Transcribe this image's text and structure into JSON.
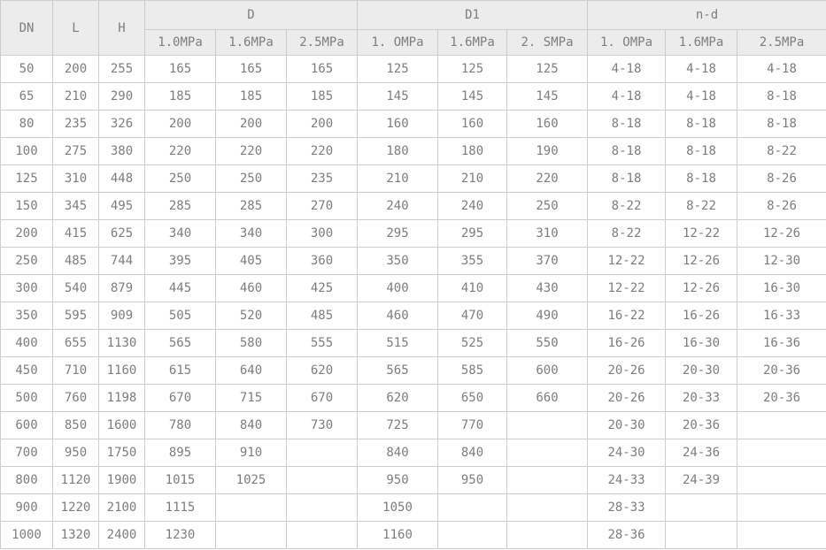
{
  "table": {
    "header": {
      "dn": "DN",
      "l": "L",
      "h": "H",
      "groups": [
        {
          "label": "D",
          "subs": [
            "1.0MPa",
            "1.6MPa",
            "2.5MPa"
          ]
        },
        {
          "label": "D1",
          "subs": [
            "1. OMPa",
            "1.6MPa",
            "2. SMPa"
          ]
        },
        {
          "label": "n-d",
          "subs": [
            "1. OMPa",
            "1.6MPa",
            "2.5MPa"
          ]
        }
      ]
    },
    "rows": [
      [
        "50",
        "200",
        "255",
        "165",
        "165",
        "165",
        "125",
        "125",
        "125",
        "4-18",
        "4-18",
        "4-18"
      ],
      [
        "65",
        "210",
        "290",
        "185",
        "185",
        "185",
        "145",
        "145",
        "145",
        "4-18",
        "4-18",
        "8-18"
      ],
      [
        "80",
        "235",
        "326",
        "200",
        "200",
        "200",
        "160",
        "160",
        "160",
        "8-18",
        "8-18",
        "8-18"
      ],
      [
        "100",
        "275",
        "380",
        "220",
        "220",
        "220",
        "180",
        "180",
        "190",
        "8-18",
        "8-18",
        "8-22"
      ],
      [
        "125",
        "310",
        "448",
        "250",
        "250",
        "235",
        "210",
        "210",
        "220",
        "8-18",
        "8-18",
        "8-26"
      ],
      [
        "150",
        "345",
        "495",
        "285",
        "285",
        "270",
        "240",
        "240",
        "250",
        "8-22",
        "8-22",
        "8-26"
      ],
      [
        "200",
        "415",
        "625",
        "340",
        "340",
        "300",
        "295",
        "295",
        "310",
        "8-22",
        "12-22",
        "12-26"
      ],
      [
        "250",
        "485",
        "744",
        "395",
        "405",
        "360",
        "350",
        "355",
        "370",
        "12-22",
        "12-26",
        "12-30"
      ],
      [
        "300",
        "540",
        "879",
        "445",
        "460",
        "425",
        "400",
        "410",
        "430",
        "12-22",
        "12-26",
        "16-30"
      ],
      [
        "350",
        "595",
        "909",
        "505",
        "520",
        "485",
        "460",
        "470",
        "490",
        "16-22",
        "16-26",
        "16-33"
      ],
      [
        "400",
        "655",
        "1130",
        "565",
        "580",
        "555",
        "515",
        "525",
        "550",
        "16-26",
        "16-30",
        "16-36"
      ],
      [
        "450",
        "710",
        "1160",
        "615",
        "640",
        "620",
        "565",
        "585",
        "600",
        "20-26",
        "20-30",
        "20-36"
      ],
      [
        "500",
        "760",
        "1198",
        "670",
        "715",
        "670",
        "620",
        "650",
        "660",
        "20-26",
        "20-33",
        "20-36"
      ],
      [
        "600",
        "850",
        "1600",
        "780",
        "840",
        "730",
        "725",
        "770",
        "",
        "20-30",
        "20-36",
        ""
      ],
      [
        "700",
        "950",
        "1750",
        "895",
        "910",
        "",
        "840",
        "840",
        "",
        "24-30",
        "24-36",
        ""
      ],
      [
        "800",
        "1120",
        "1900",
        "1015",
        "1025",
        "",
        "950",
        "950",
        "",
        "24-33",
        "24-39",
        ""
      ],
      [
        "900",
        "1220",
        "2100",
        "1115",
        "",
        "",
        "1050",
        "",
        "",
        "28-33",
        "",
        ""
      ],
      [
        "1000",
        "1320",
        "2400",
        "1230",
        "",
        "",
        "1160",
        "",
        "",
        "28-36",
        "",
        ""
      ]
    ]
  },
  "colors": {
    "header_background": "#ececec",
    "border": "#cccccc",
    "text": "#7d7d7d",
    "row_background": "#ffffff"
  }
}
